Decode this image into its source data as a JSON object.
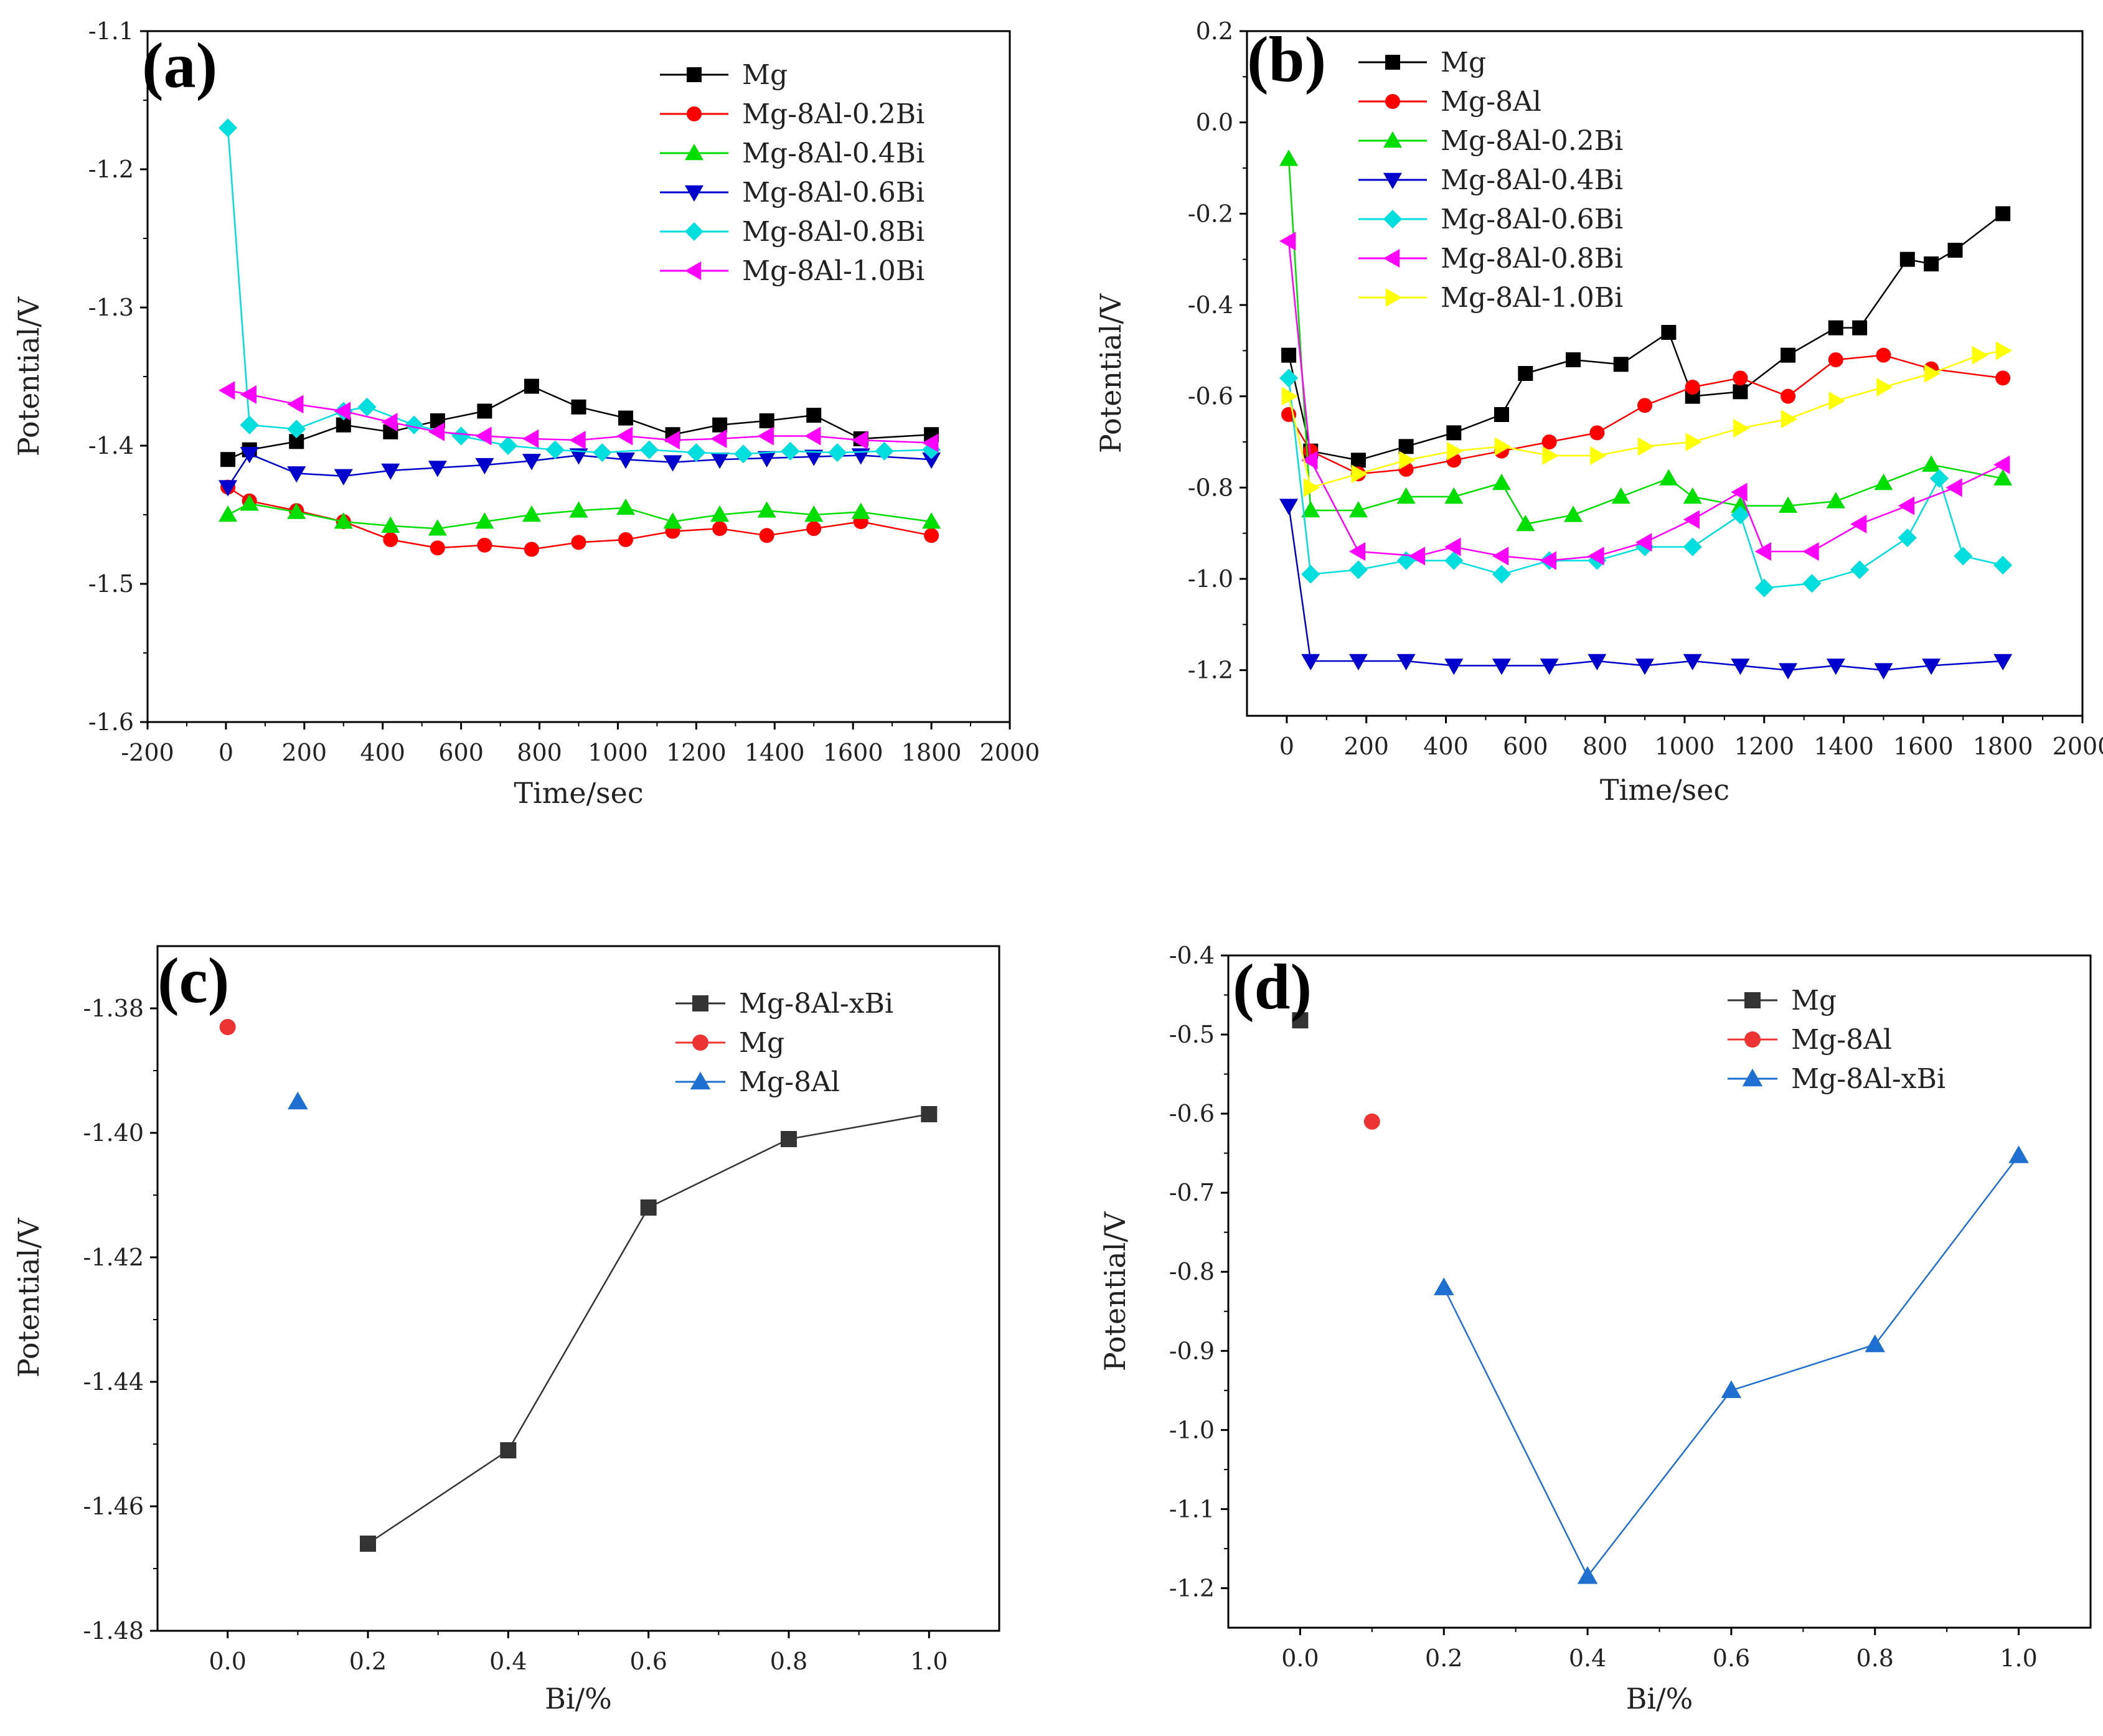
{
  "figure": {
    "panel_labels": [
      "(a)",
      "(b)",
      "(c)",
      "(d)"
    ]
  },
  "chart_data": [
    {
      "panel": "(a)",
      "type": "line",
      "xlabel": "Time/sec",
      "ylabel": "Potential/V",
      "xlim": [
        -200,
        2000
      ],
      "ylim": [
        -1.6,
        -1.1
      ],
      "xticks": [
        -200,
        0,
        200,
        400,
        600,
        800,
        1000,
        1200,
        1400,
        1600,
        1800
      ],
      "xtick_labels": [
        "-200",
        "0",
        "200",
        "400",
        "600",
        "800",
        "1000",
        "1200",
        "1400",
        "1600",
        "1800",
        "2000"
      ],
      "yticks": [
        -1.6,
        -1.5,
        -1.4,
        -1.3,
        -1.2,
        -1.1
      ],
      "ytick_labels": [
        "-1.6",
        "-1.5",
        "-1.4",
        "-1.3",
        "-1.2",
        "-1.1"
      ],
      "legend_position": "top-right",
      "series": [
        {
          "name": "Mg",
          "color": "#000000",
          "marker": "square",
          "x": [
            5,
            60,
            180,
            300,
            420,
            540,
            660,
            780,
            900,
            1020,
            1140,
            1260,
            1380,
            1500,
            1620,
            1800
          ],
          "y": [
            -1.41,
            -1.403,
            -1.397,
            -1.385,
            -1.39,
            -1.382,
            -1.375,
            -1.357,
            -1.372,
            -1.38,
            -1.392,
            -1.385,
            -1.382,
            -1.378,
            -1.395,
            -1.392
          ]
        },
        {
          "name": "Mg-8Al-0.2Bi",
          "color": "#ff0000",
          "marker": "circle",
          "x": [
            5,
            60,
            180,
            300,
            420,
            540,
            660,
            780,
            900,
            1020,
            1140,
            1260,
            1380,
            1500,
            1620,
            1800
          ],
          "y": [
            -1.43,
            -1.44,
            -1.447,
            -1.455,
            -1.468,
            -1.474,
            -1.472,
            -1.475,
            -1.47,
            -1.468,
            -1.462,
            -1.46,
            -1.465,
            -1.46,
            -1.455,
            -1.465
          ]
        },
        {
          "name": "Mg-8Al-0.4Bi",
          "color": "#00dd00",
          "marker": "triangle-up",
          "x": [
            5,
            60,
            180,
            300,
            420,
            540,
            660,
            780,
            900,
            1020,
            1140,
            1260,
            1380,
            1500,
            1620,
            1800
          ],
          "y": [
            -1.45,
            -1.442,
            -1.448,
            -1.455,
            -1.458,
            -1.46,
            -1.455,
            -1.45,
            -1.447,
            -1.445,
            -1.455,
            -1.45,
            -1.447,
            -1.45,
            -1.448,
            -1.455
          ]
        },
        {
          "name": "Mg-8Al-0.6Bi",
          "color": "#0000cc",
          "marker": "triangle-down",
          "x": [
            5,
            60,
            180,
            300,
            420,
            540,
            660,
            780,
            900,
            1020,
            1140,
            1260,
            1380,
            1500,
            1620,
            1800
          ],
          "y": [
            -1.43,
            -1.406,
            -1.42,
            -1.422,
            -1.418,
            -1.416,
            -1.414,
            -1.411,
            -1.407,
            -1.41,
            -1.412,
            -1.41,
            -1.409,
            -1.408,
            -1.407,
            -1.41
          ]
        },
        {
          "name": "Mg-8Al-0.8Bi",
          "color": "#00dddd",
          "marker": "diamond",
          "x": [
            5,
            60,
            180,
            300,
            360,
            480,
            600,
            720,
            840,
            960,
            1080,
            1200,
            1320,
            1440,
            1560,
            1680,
            1800
          ],
          "y": [
            -1.17,
            -1.385,
            -1.388,
            -1.375,
            -1.372,
            -1.385,
            -1.393,
            -1.4,
            -1.403,
            -1.405,
            -1.403,
            -1.405,
            -1.406,
            -1.404,
            -1.405,
            -1.404,
            -1.403
          ]
        },
        {
          "name": "Mg-8Al-1.0Bi",
          "color": "#ff00ff",
          "marker": "triangle-left",
          "x": [
            5,
            60,
            180,
            300,
            420,
            540,
            660,
            780,
            900,
            1020,
            1140,
            1260,
            1380,
            1500,
            1620,
            1800
          ],
          "y": [
            -1.36,
            -1.363,
            -1.37,
            -1.375,
            -1.383,
            -1.39,
            -1.393,
            -1.395,
            -1.396,
            -1.393,
            -1.396,
            -1.395,
            -1.393,
            -1.393,
            -1.396,
            -1.398
          ]
        }
      ]
    },
    {
      "panel": "(b)",
      "type": "line",
      "xlabel": "Time/sec",
      "ylabel": "Potential/V",
      "xlim": [
        -100,
        2000
      ],
      "ylim": [
        -1.3,
        0.2
      ],
      "xticks": [
        0,
        200,
        400,
        600,
        800,
        1000,
        1200,
        1400,
        1600,
        1800
      ],
      "xtick_labels": [
        "0",
        "200",
        "400",
        "600",
        "800",
        "1000",
        "1200",
        "1400",
        "1600",
        "1800",
        "2000"
      ],
      "yticks": [
        -1.2,
        -1.0,
        -0.8,
        -0.6,
        -0.4,
        -0.2,
        0.0,
        0.2
      ],
      "ytick_labels": [
        "-1.2",
        "-1.0",
        "-0.8",
        "-0.6",
        "-0.4",
        "-0.2",
        "0.0",
        "0.2"
      ],
      "legend_position": "top-left",
      "series": [
        {
          "name": "Mg",
          "color": "#000000",
          "marker": "square",
          "x": [
            5,
            60,
            180,
            300,
            420,
            540,
            600,
            720,
            840,
            960,
            1020,
            1140,
            1260,
            1380,
            1440,
            1560,
            1620,
            1680,
            1800
          ],
          "y": [
            -0.51,
            -0.72,
            -0.74,
            -0.71,
            -0.68,
            -0.64,
            -0.55,
            -0.52,
            -0.53,
            -0.46,
            -0.6,
            -0.59,
            -0.51,
            -0.45,
            -0.45,
            -0.3,
            -0.31,
            -0.28,
            -0.2
          ]
        },
        {
          "name": "Mg-8Al",
          "color": "#ff0000",
          "marker": "circle",
          "x": [
            5,
            60,
            180,
            300,
            420,
            540,
            660,
            780,
            900,
            1020,
            1140,
            1260,
            1380,
            1500,
            1620,
            1800
          ],
          "y": [
            -0.64,
            -0.72,
            -0.77,
            -0.76,
            -0.74,
            -0.72,
            -0.7,
            -0.68,
            -0.62,
            -0.58,
            -0.56,
            -0.6,
            -0.52,
            -0.51,
            -0.54,
            -0.56
          ]
        },
        {
          "name": "Mg-8Al-0.2Bi",
          "color": "#00dd00",
          "marker": "triangle-up",
          "x": [
            5,
            60,
            180,
            300,
            420,
            540,
            600,
            720,
            840,
            960,
            1020,
            1140,
            1260,
            1380,
            1500,
            1620,
            1800
          ],
          "y": [
            -0.08,
            -0.85,
            -0.85,
            -0.82,
            -0.82,
            -0.79,
            -0.88,
            -0.86,
            -0.82,
            -0.78,
            -0.82,
            -0.84,
            -0.84,
            -0.83,
            -0.79,
            -0.75,
            -0.78
          ]
        },
        {
          "name": "Mg-8Al-0.4Bi",
          "color": "#0000cc",
          "marker": "triangle-down",
          "x": [
            5,
            60,
            180,
            300,
            420,
            540,
            660,
            780,
            900,
            1020,
            1140,
            1260,
            1380,
            1500,
            1620,
            1800
          ],
          "y": [
            -0.84,
            -1.18,
            -1.18,
            -1.18,
            -1.19,
            -1.19,
            -1.19,
            -1.18,
            -1.19,
            -1.18,
            -1.19,
            -1.2,
            -1.19,
            -1.2,
            -1.19,
            -1.18
          ]
        },
        {
          "name": "Mg-8Al-0.6Bi",
          "color": "#00dddd",
          "marker": "diamond",
          "x": [
            5,
            60,
            180,
            300,
            420,
            540,
            660,
            780,
            900,
            1020,
            1140,
            1200,
            1320,
            1440,
            1560,
            1640,
            1700,
            1800
          ],
          "y": [
            -0.56,
            -0.99,
            -0.98,
            -0.96,
            -0.96,
            -0.99,
            -0.96,
            -0.96,
            -0.93,
            -0.93,
            -0.86,
            -1.02,
            -1.01,
            -0.98,
            -0.91,
            -0.78,
            -0.95,
            -0.97
          ]
        },
        {
          "name": "Mg-8Al-0.8Bi",
          "color": "#ff00ff",
          "marker": "triangle-left",
          "x": [
            5,
            60,
            180,
            330,
            420,
            540,
            660,
            780,
            900,
            1020,
            1140,
            1200,
            1320,
            1440,
            1560,
            1680,
            1800
          ],
          "y": [
            -0.26,
            -0.74,
            -0.94,
            -0.95,
            -0.93,
            -0.95,
            -0.96,
            -0.95,
            -0.92,
            -0.87,
            -0.81,
            -0.94,
            -0.94,
            -0.88,
            -0.84,
            -0.8,
            -0.75
          ]
        },
        {
          "name": "Mg-8Al-1.0Bi",
          "color": "#ffff00",
          "marker": "triangle-right",
          "x": [
            5,
            60,
            180,
            300,
            420,
            540,
            660,
            780,
            900,
            1020,
            1140,
            1260,
            1380,
            1500,
            1620,
            1740,
            1800
          ],
          "y": [
            -0.6,
            -0.8,
            -0.77,
            -0.74,
            -0.72,
            -0.71,
            -0.73,
            -0.73,
            -0.71,
            -0.7,
            -0.67,
            -0.65,
            -0.61,
            -0.58,
            -0.55,
            -0.51,
            -0.5
          ]
        }
      ]
    },
    {
      "panel": "(c)",
      "type": "line",
      "xlabel": "Bi/%",
      "ylabel": "Potential/V",
      "xlim": [
        -0.1,
        1.1
      ],
      "ylim": [
        -1.48,
        -1.37
      ],
      "xticks": [
        0.0,
        0.2,
        0.4,
        0.6,
        0.8,
        1.0
      ],
      "xtick_labels": [
        "0.0",
        "0.2",
        "0.4",
        "0.6",
        "0.8",
        "1.0"
      ],
      "yticks": [
        -1.48,
        -1.46,
        -1.44,
        -1.42,
        -1.4,
        -1.38
      ],
      "ytick_labels": [
        "-1.48",
        "-1.46",
        "-1.44",
        "-1.42",
        "-1.40",
        "-1.38"
      ],
      "legend_position": "top-right",
      "series": [
        {
          "name": "Mg-8Al-xBi",
          "color": "#333333",
          "marker": "square",
          "line": true,
          "x": [
            0.2,
            0.4,
            0.6,
            0.8,
            1.0
          ],
          "y": [
            -1.466,
            -1.451,
            -1.412,
            -1.401,
            -1.397
          ]
        },
        {
          "name": "Mg",
          "color": "#ee3333",
          "marker": "circle",
          "line": false,
          "x": [
            0.0
          ],
          "y": [
            -1.383
          ]
        },
        {
          "name": "Mg-8Al",
          "color": "#1f6fd0",
          "marker": "triangle-up",
          "line": false,
          "x": [
            0.1
          ],
          "y": [
            -1.395
          ]
        }
      ]
    },
    {
      "panel": "(d)",
      "type": "line",
      "xlabel": "Bi/%",
      "ylabel": "Potential/V",
      "xlim": [
        -0.1,
        1.1
      ],
      "ylim": [
        -1.25,
        -0.4
      ],
      "xticks": [
        0.0,
        0.2,
        0.4,
        0.6,
        0.8,
        1.0
      ],
      "xtick_labels": [
        "0.0",
        "0.2",
        "0.4",
        "0.6",
        "0.8",
        "1.0"
      ],
      "yticks": [
        -1.2,
        -1.1,
        -1.0,
        -0.9,
        -0.8,
        -0.7,
        -0.6,
        -0.5,
        -0.4
      ],
      "ytick_labels": [
        "-1.2",
        "-1.1",
        "-1.0",
        "-0.9",
        "-0.8",
        "-0.7",
        "-0.6",
        "-0.5",
        "-0.4"
      ],
      "legend_position": "top-right",
      "series": [
        {
          "name": "Mg",
          "color": "#333333",
          "marker": "square",
          "line": false,
          "x": [
            0.0
          ],
          "y": [
            -0.482
          ]
        },
        {
          "name": "Mg-8Al",
          "color": "#ee3333",
          "marker": "circle",
          "line": false,
          "x": [
            0.1
          ],
          "y": [
            -0.61
          ]
        },
        {
          "name": "Mg-8Al-xBi",
          "color": "#1f6fd0",
          "marker": "triangle-up",
          "line": true,
          "x": [
            0.2,
            0.4,
            0.6,
            0.8,
            1.0
          ],
          "y": [
            -0.82,
            -1.185,
            -0.95,
            -0.892,
            -0.653
          ]
        }
      ]
    }
  ]
}
